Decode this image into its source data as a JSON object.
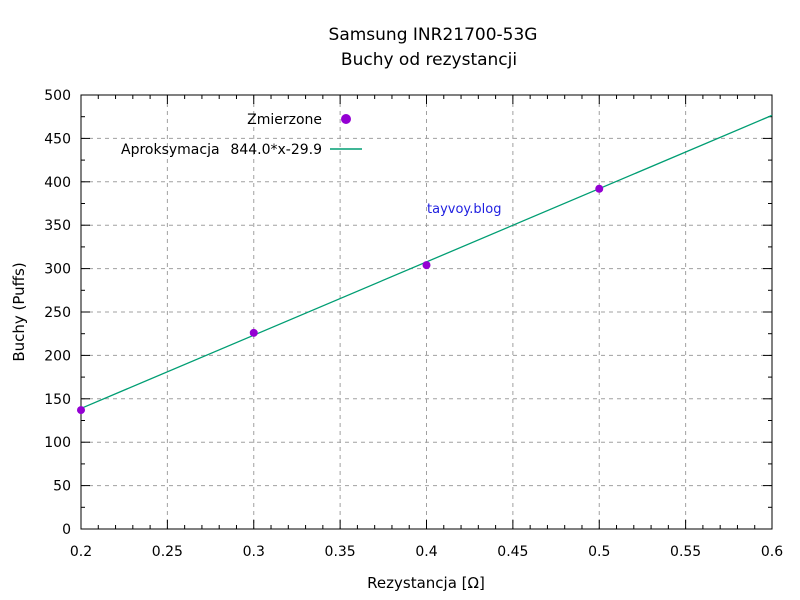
{
  "chart_data": {
    "type": "scatter",
    "title": "Samsung INR21700-53G",
    "subtitle": "Buchy od rezystancji",
    "xlabel": "Rezystancja [Ω]",
    "ylabel": "Buchy (Puffs)",
    "xlim": [
      0.2,
      0.6
    ],
    "ylim": [
      0,
      500
    ],
    "xticks": [
      "0.2",
      "0.25",
      "0.3",
      "0.35",
      "0.4",
      "0.45",
      "0.5",
      "0.55",
      "0.6"
    ],
    "yticks": [
      "0",
      "50",
      "100",
      "150",
      "200",
      "250",
      "300",
      "350",
      "400",
      "450",
      "500"
    ],
    "grid": true,
    "legend_position": "top-left",
    "series": [
      {
        "name": "Zmierzone",
        "kind": "points",
        "color": "#9400d3",
        "x": [
          0.2,
          0.3,
          0.4,
          0.5
        ],
        "y": [
          137,
          226,
          304,
          392
        ]
      },
      {
        "name": "Aproksymacja",
        "formula": "844.0*x-29.9",
        "kind": "line",
        "color": "#009e73",
        "slope": 844.0,
        "intercept": -29.9
      }
    ],
    "annotation": "tayvoy.blog"
  }
}
